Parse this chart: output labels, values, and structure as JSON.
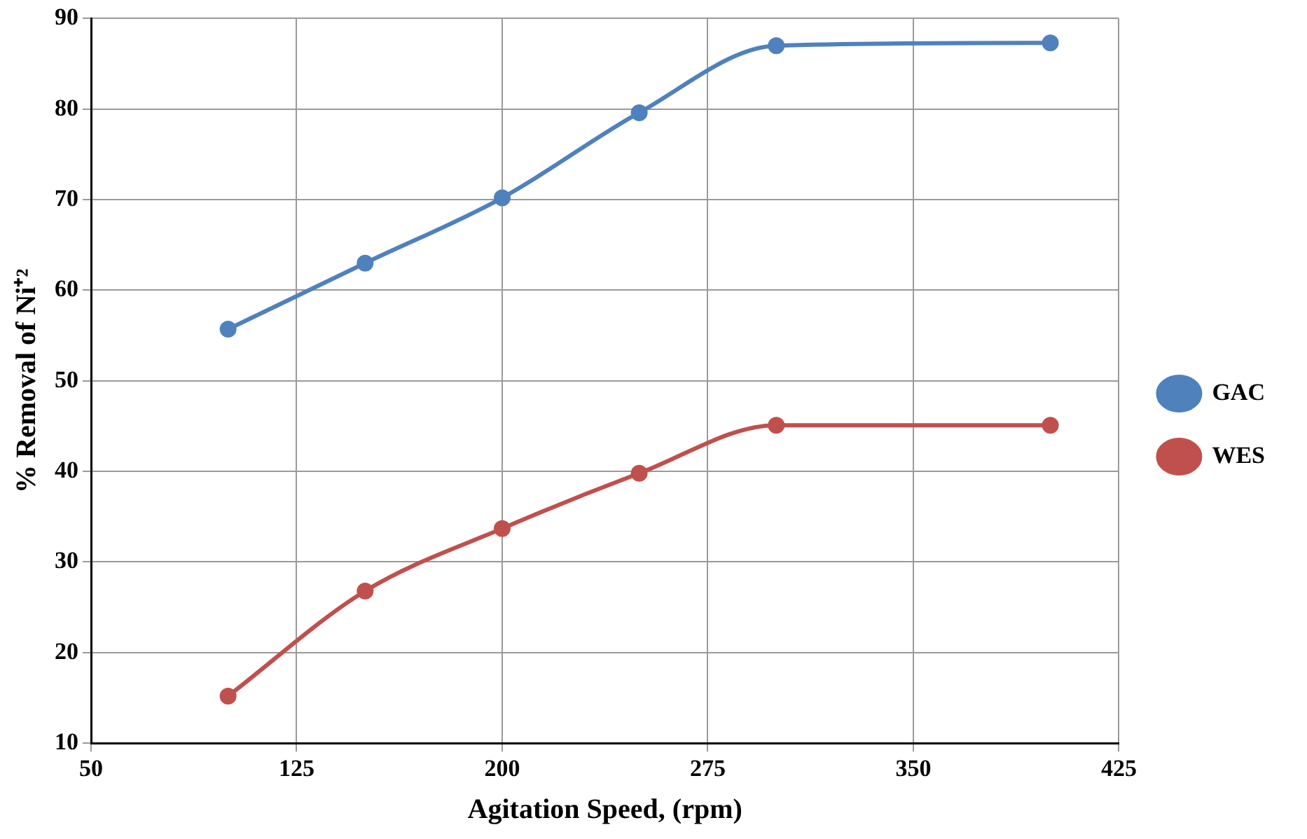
{
  "chart_data": {
    "type": "line",
    "xlabel": "Agitation Speed, (rpm)",
    "ylabel": "% Removal of Ni⁺²",
    "x": [
      100,
      150,
      200,
      250,
      300,
      400
    ],
    "series": [
      {
        "name": "GAC",
        "color": "#4f81bd",
        "values": [
          55.7,
          63,
          70.2,
          79.6,
          87,
          87.3
        ]
      },
      {
        "name": "WES",
        "color": "#c0504d",
        "values": [
          15.2,
          26.8,
          33.7,
          39.8,
          45.1,
          45.1
        ]
      }
    ],
    "xlim": [
      50,
      425
    ],
    "xticks": [
      50,
      125,
      200,
      275,
      350,
      425
    ],
    "ylim": [
      10,
      90
    ],
    "yticks": [
      10,
      20,
      30,
      40,
      50,
      60,
      70,
      80,
      90
    ],
    "grid": true,
    "legend": "right",
    "marker": "circle",
    "line_style": "solid"
  }
}
